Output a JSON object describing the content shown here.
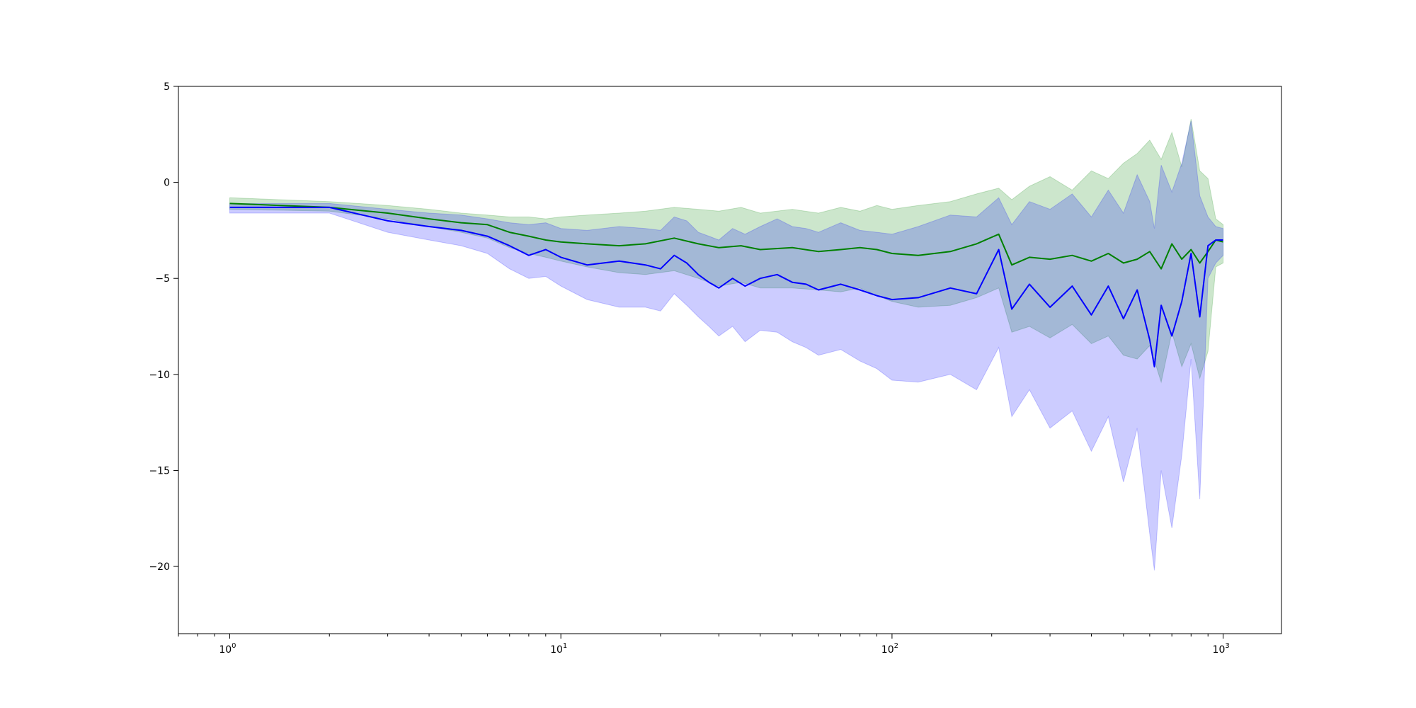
{
  "chart_data": {
    "type": "line",
    "title": "",
    "xlabel": "",
    "ylabel": "",
    "xscale": "log",
    "xlim": [
      0.7,
      1500
    ],
    "ylim": [
      -23.5,
      5
    ],
    "grid": false,
    "legend": "none",
    "x_ticks": [
      1,
      10,
      100,
      1000
    ],
    "x_tick_labels": [
      {
        "base": "10",
        "exp": "0"
      },
      {
        "base": "10",
        "exp": "1"
      },
      {
        "base": "10",
        "exp": "2"
      },
      {
        "base": "10",
        "exp": "3"
      }
    ],
    "y_ticks": [
      5,
      0,
      -5,
      -10,
      -15,
      -20
    ],
    "y_tick_labels": [
      "5",
      "0",
      "−5",
      "−10",
      "−15",
      "−20"
    ],
    "series": [
      {
        "color": "#008000",
        "band_color": "#008000",
        "band_opacity": 0.2,
        "x": [
          1,
          2,
          3,
          4,
          5,
          6,
          7,
          8,
          9,
          10,
          12,
          15,
          18,
          22,
          26,
          30,
          35,
          40,
          50,
          60,
          70,
          80,
          90,
          100,
          120,
          150,
          180,
          210,
          230,
          260,
          300,
          350,
          400,
          450,
          500,
          550,
          600,
          650,
          700,
          750,
          800,
          850,
          900,
          950,
          1000
        ],
        "mean": [
          -1.1,
          -1.3,
          -1.6,
          -1.9,
          -2.1,
          -2.2,
          -2.6,
          -2.8,
          -3.0,
          -3.1,
          -3.2,
          -3.3,
          -3.2,
          -2.9,
          -3.2,
          -3.4,
          -3.3,
          -3.5,
          -3.4,
          -3.6,
          -3.5,
          -3.4,
          -3.5,
          -3.7,
          -3.8,
          -3.6,
          -3.2,
          -2.7,
          -4.3,
          -3.9,
          -4.0,
          -3.8,
          -4.1,
          -3.7,
          -4.2,
          -4.0,
          -3.6,
          -4.5,
          -3.2,
          -4.0,
          -3.5,
          -4.2,
          -3.6,
          -3.0,
          -3.1
        ],
        "upper": [
          -0.8,
          -1.0,
          -1.2,
          -1.4,
          -1.6,
          -1.7,
          -1.8,
          -1.8,
          -1.9,
          -1.8,
          -1.7,
          -1.6,
          -1.5,
          -1.3,
          -1.4,
          -1.5,
          -1.3,
          -1.6,
          -1.4,
          -1.6,
          -1.3,
          -1.5,
          -1.2,
          -1.4,
          -1.2,
          -1.0,
          -0.6,
          -0.3,
          -0.9,
          -0.2,
          0.3,
          -0.4,
          0.6,
          0.2,
          1.0,
          1.5,
          2.2,
          1.2,
          2.6,
          0.8,
          3.3,
          0.6,
          0.2,
          -1.9,
          -2.2
        ],
        "lower": [
          -1.4,
          -1.5,
          -1.9,
          -2.3,
          -2.6,
          -2.9,
          -3.4,
          -3.7,
          -3.9,
          -4.1,
          -4.4,
          -4.7,
          -4.8,
          -4.6,
          -5.0,
          -5.4,
          -5.2,
          -5.5,
          -5.5,
          -5.6,
          -5.7,
          -5.5,
          -5.9,
          -6.2,
          -6.5,
          -6.4,
          -6.0,
          -5.5,
          -7.8,
          -7.5,
          -8.1,
          -7.4,
          -8.4,
          -8.0,
          -9.0,
          -9.2,
          -8.5,
          -10.4,
          -7.8,
          -9.6,
          -8.4,
          -10.2,
          -8.8,
          -4.4,
          -4.2
        ]
      },
      {
        "color": "#0000ff",
        "band_color": "#0000ff",
        "band_opacity": 0.2,
        "x": [
          1,
          2,
          3,
          4,
          5,
          6,
          7,
          8,
          9,
          10,
          12,
          15,
          18,
          20,
          22,
          24,
          26,
          28,
          30,
          33,
          36,
          40,
          45,
          50,
          55,
          60,
          70,
          80,
          90,
          100,
          120,
          150,
          180,
          210,
          230,
          260,
          300,
          350,
          400,
          450,
          500,
          550,
          600,
          620,
          650,
          700,
          750,
          800,
          850,
          900,
          950,
          1000
        ],
        "mean": [
          -1.3,
          -1.3,
          -2.0,
          -2.3,
          -2.5,
          -2.8,
          -3.3,
          -3.8,
          -3.5,
          -3.9,
          -4.3,
          -4.1,
          -4.3,
          -4.5,
          -3.8,
          -4.2,
          -4.8,
          -5.2,
          -5.5,
          -5.0,
          -5.4,
          -5.0,
          -4.8,
          -5.2,
          -5.3,
          -5.6,
          -5.3,
          -5.6,
          -5.9,
          -6.1,
          -6.0,
          -5.5,
          -5.8,
          -3.5,
          -6.6,
          -5.3,
          -6.5,
          -5.4,
          -6.9,
          -5.4,
          -7.1,
          -5.6,
          -8.2,
          -9.6,
          -6.4,
          -8.0,
          -6.2,
          -3.7,
          -7.0,
          -3.3,
          -3.0,
          -3.0
        ],
        "upper": [
          -1.1,
          -1.1,
          -1.4,
          -1.6,
          -1.7,
          -1.9,
          -2.1,
          -2.2,
          -2.1,
          -2.4,
          -2.5,
          -2.3,
          -2.4,
          -2.5,
          -1.8,
          -2.0,
          -2.6,
          -2.8,
          -3.0,
          -2.4,
          -2.7,
          -2.3,
          -1.9,
          -2.3,
          -2.4,
          -2.6,
          -2.1,
          -2.5,
          -2.6,
          -2.7,
          -2.3,
          -1.7,
          -1.8,
          -0.8,
          -2.2,
          -1.0,
          -1.4,
          -0.6,
          -1.8,
          -0.4,
          -1.6,
          0.4,
          -1.0,
          -2.4,
          0.9,
          -0.5,
          1.0,
          3.2,
          -0.7,
          -1.8,
          -2.3,
          -2.4
        ],
        "lower": [
          -1.6,
          -1.6,
          -2.6,
          -3.0,
          -3.3,
          -3.7,
          -4.5,
          -5.0,
          -4.9,
          -5.4,
          -6.1,
          -6.5,
          -6.5,
          -6.7,
          -5.8,
          -6.4,
          -7.0,
          -7.5,
          -8.0,
          -7.5,
          -8.3,
          -7.7,
          -7.8,
          -8.3,
          -8.6,
          -9.0,
          -8.7,
          -9.3,
          -9.7,
          -10.3,
          -10.4,
          -10.0,
          -10.8,
          -8.6,
          -12.2,
          -10.8,
          -12.8,
          -11.9,
          -14.0,
          -12.2,
          -15.6,
          -12.8,
          -18.3,
          -20.2,
          -15.0,
          -18.0,
          -14.2,
          -9.2,
          -16.5,
          -5.0,
          -4.2,
          -3.8
        ]
      }
    ]
  }
}
